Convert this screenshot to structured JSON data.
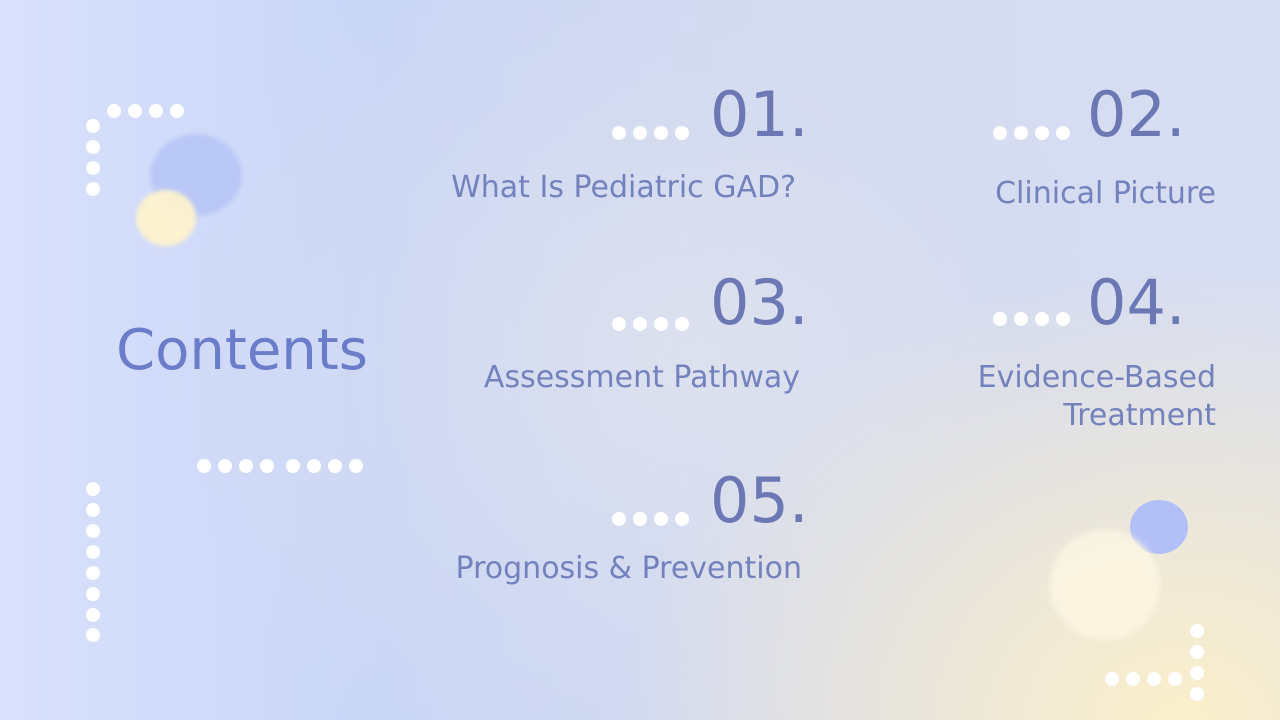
{
  "title": "Contents",
  "items": [
    {
      "number": "01.",
      "label": "What Is Pediatric GAD?"
    },
    {
      "number": "02.",
      "label": "Clinical Picture"
    },
    {
      "number": "03.",
      "label": "Assessment Pathway"
    },
    {
      "number": "04.",
      "label": "Evidence-Based Treatment"
    },
    {
      "number": "05.",
      "label": "Prognosis & Prevention"
    }
  ],
  "colors": {
    "title": "#6b7cc8",
    "number": "#6b78b4",
    "label": "#7382bd",
    "dots": "#ffffff",
    "accent_blue": "#b4c2f8",
    "accent_yellow": "#fbf1d2"
  }
}
